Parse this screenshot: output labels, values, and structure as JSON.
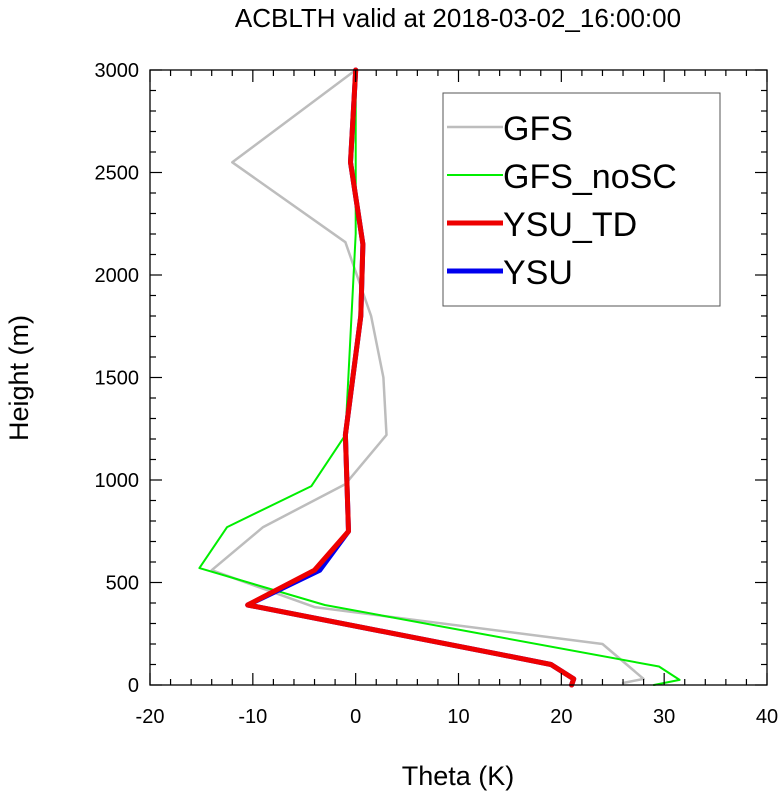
{
  "chart_data": {
    "type": "line",
    "title": "ACBLTH valid at 2018-03-02_16:00:00",
    "xlabel": "Theta (K)",
    "ylabel": "Height (m)",
    "xlim": [
      -20,
      40
    ],
    "ylim": [
      0,
      3000
    ],
    "xticks": [
      -20,
      -10,
      0,
      10,
      20,
      30,
      40
    ],
    "yticks": [
      0,
      500,
      1000,
      1500,
      2000,
      2500,
      3000
    ],
    "grid": false,
    "legend_position": "top-right",
    "series": [
      {
        "name": "GFS",
        "color": "#bdbdbd",
        "width": 2.5,
        "points": [
          [
            26,
            10
          ],
          [
            28,
            30
          ],
          [
            24,
            200
          ],
          [
            -4,
            380
          ],
          [
            -14,
            560
          ],
          [
            -9,
            770
          ],
          [
            -1,
            980
          ],
          [
            3,
            1220
          ],
          [
            2.7,
            1500
          ],
          [
            1.5,
            1800
          ],
          [
            -1,
            2160
          ],
          [
            -12,
            2550
          ],
          [
            0,
            3000
          ]
        ]
      },
      {
        "name": "GFS_noSC",
        "color": "#00ee00",
        "width": 2,
        "points": [
          [
            29,
            0
          ],
          [
            31.5,
            25
          ],
          [
            29.5,
            90
          ],
          [
            -3,
            390
          ],
          [
            -15.2,
            570
          ],
          [
            -12.5,
            770
          ],
          [
            -4.3,
            970
          ],
          [
            -1,
            1220
          ],
          [
            0,
            2200
          ],
          [
            0,
            3000
          ]
        ]
      },
      {
        "name": "YSU_TD",
        "color": "#ee0000",
        "width": 5,
        "points": [
          [
            21,
            0
          ],
          [
            21.2,
            30
          ],
          [
            19,
            100
          ],
          [
            14,
            150
          ],
          [
            -10.5,
            390
          ],
          [
            -4,
            560
          ],
          [
            -0.7,
            750
          ],
          [
            -1,
            1220
          ],
          [
            0.5,
            1800
          ],
          [
            0.7,
            2150
          ],
          [
            -0.5,
            2550
          ],
          [
            0,
            3000
          ]
        ]
      },
      {
        "name": "YSU",
        "color": "#0000ee",
        "width": 5,
        "points": [
          [
            21,
            0
          ],
          [
            21.2,
            30
          ],
          [
            19,
            100
          ],
          [
            14,
            150
          ],
          [
            -10.5,
            390
          ],
          [
            -3.5,
            560
          ],
          [
            -0.7,
            750
          ],
          [
            -1,
            1220
          ],
          [
            0.5,
            1800
          ],
          [
            0.7,
            2150
          ],
          [
            -0.5,
            2550
          ],
          [
            0,
            3000
          ]
        ]
      }
    ]
  }
}
